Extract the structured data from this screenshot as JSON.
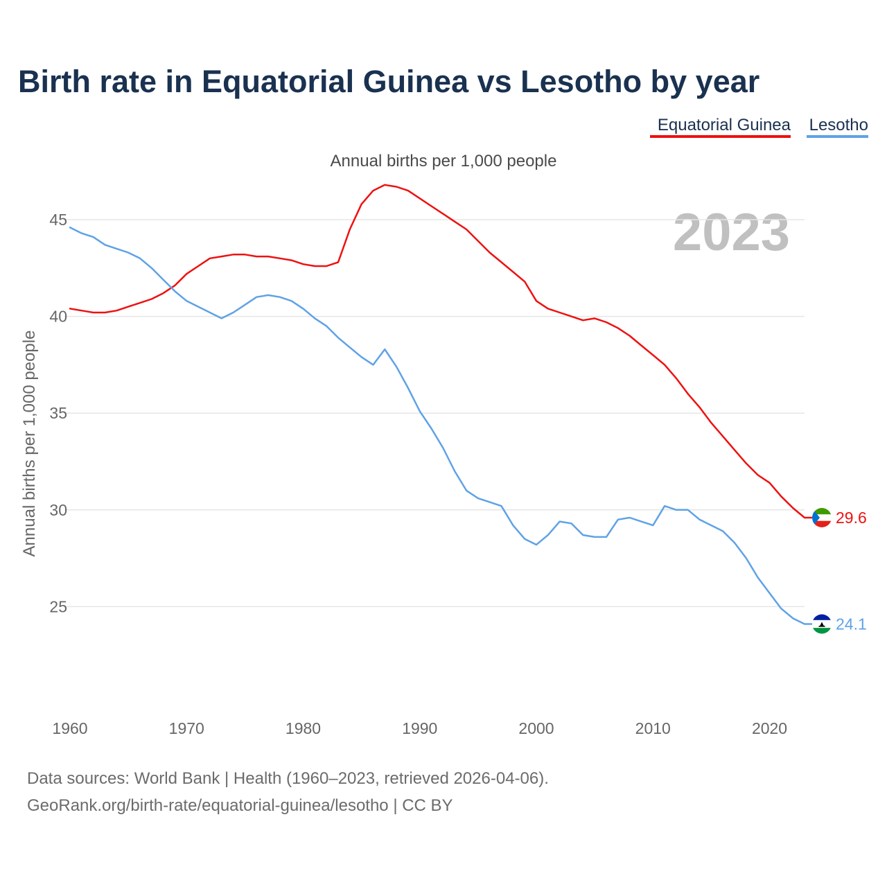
{
  "chart_data": {
    "type": "line",
    "title": "Birth rate in Equatorial Guinea vs Lesotho by year",
    "subtitle": "Annual births per 1,000 people",
    "ylabel": "Annual births per 1,000 people",
    "xlabel": "",
    "year_label": "2023",
    "xlim": [
      1960,
      2023
    ],
    "ylim": [
      23,
      47
    ],
    "x_ticks": [
      1960,
      1970,
      1980,
      1990,
      2000,
      2010,
      2020
    ],
    "y_ticks": [
      25,
      30,
      35,
      40,
      45
    ],
    "grid": true,
    "legend_position": "top-right",
    "x": [
      1960,
      1961,
      1962,
      1963,
      1964,
      1965,
      1966,
      1967,
      1968,
      1969,
      1970,
      1971,
      1972,
      1973,
      1974,
      1975,
      1976,
      1977,
      1978,
      1979,
      1980,
      1981,
      1982,
      1983,
      1984,
      1985,
      1986,
      1987,
      1988,
      1989,
      1990,
      1991,
      1992,
      1993,
      1994,
      1995,
      1996,
      1997,
      1998,
      1999,
      2000,
      2001,
      2002,
      2003,
      2004,
      2005,
      2006,
      2007,
      2008,
      2009,
      2010,
      2011,
      2012,
      2013,
      2014,
      2015,
      2016,
      2017,
      2018,
      2019,
      2020,
      2021,
      2022,
      2023
    ],
    "series": [
      {
        "name": "Equatorial Guinea",
        "color": "#ee1111",
        "end_value": "29.6",
        "values": [
          40.4,
          40.3,
          40.2,
          40.2,
          40.3,
          40.5,
          40.7,
          40.9,
          41.2,
          41.6,
          42.2,
          42.6,
          43.0,
          43.1,
          43.2,
          43.2,
          43.1,
          43.1,
          43.0,
          42.9,
          42.7,
          42.6,
          42.6,
          42.8,
          44.5,
          45.8,
          46.5,
          46.8,
          46.7,
          46.5,
          46.1,
          45.7,
          45.3,
          44.9,
          44.5,
          43.9,
          43.3,
          42.8,
          42.3,
          41.8,
          40.8,
          40.4,
          40.2,
          40.0,
          39.8,
          39.9,
          39.7,
          39.4,
          39.0,
          38.5,
          38.0,
          37.5,
          36.8,
          36.0,
          35.3,
          34.5,
          33.8,
          33.1,
          32.4,
          31.8,
          31.4,
          30.7,
          30.1,
          29.6
        ]
      },
      {
        "name": "Lesotho",
        "color": "#5fa2e6",
        "end_value": "24.1",
        "values": [
          44.6,
          44.3,
          44.1,
          43.7,
          43.5,
          43.3,
          43.0,
          42.5,
          41.9,
          41.3,
          40.8,
          40.5,
          40.2,
          39.9,
          40.2,
          40.6,
          41.0,
          41.1,
          41.0,
          40.8,
          40.4,
          39.9,
          39.5,
          38.9,
          38.4,
          37.9,
          37.5,
          38.3,
          37.4,
          36.3,
          35.1,
          34.2,
          33.2,
          32.0,
          31.0,
          30.6,
          30.4,
          30.2,
          29.2,
          28.5,
          28.2,
          28.7,
          29.4,
          29.3,
          28.7,
          28.6,
          28.6,
          29.5,
          29.6,
          29.4,
          29.2,
          30.2,
          30.0,
          30.0,
          29.5,
          29.2,
          28.9,
          28.3,
          27.5,
          26.5,
          25.7,
          24.9,
          24.4,
          24.1
        ]
      }
    ]
  },
  "flags": {
    "equatorial_guinea": {
      "icon": "equatorial-guinea-flag-icon",
      "colors": [
        "#3e9a00",
        "#ffffff",
        "#e32118",
        "#0073ce"
      ]
    },
    "lesotho": {
      "icon": "lesotho-flag-icon",
      "colors": [
        "#00209f",
        "#ffffff",
        "#009543",
        "#000000"
      ]
    }
  },
  "footer": {
    "line1": "Data sources: World Bank | Health (1960–2023, retrieved 2026-04-06).",
    "line2": "GeoRank.org/birth-rate/equatorial-guinea/lesotho | CC BY"
  }
}
